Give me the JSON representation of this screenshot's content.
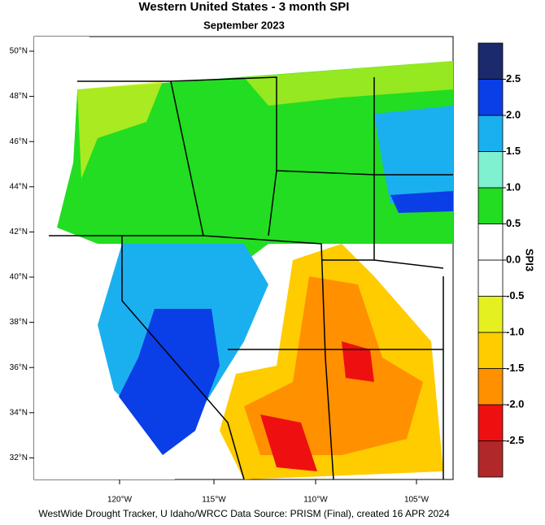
{
  "title": "Western United States - 3 month SPI",
  "subtitle": "September 2023",
  "map": {
    "lat_labels": [
      "50°N",
      "48°N",
      "46°N",
      "44°N",
      "42°N",
      "40°N",
      "38°N",
      "36°N",
      "34°N",
      "32°N"
    ],
    "lon_labels": [
      "120°W",
      "115°W",
      "110°W",
      "105°W"
    ]
  },
  "colorbar": {
    "title": "SPI3",
    "lim": [
      -3,
      3
    ],
    "colors": [
      "#b02828",
      "#ee1010",
      "#ff9000",
      "#ffcc00",
      "#e4f020",
      "#ffffff",
      "#ffffff",
      "#22dd22",
      "#7ff0d0",
      "#1ab0f0",
      "#0a3ee6",
      "#1a2a6c"
    ],
    "ticks": [
      2.5,
      {
        "value": 2,
        "label": "2.0"
      },
      1.5,
      {
        "value": 1,
        "label": "1.0"
      },
      0.5,
      {
        "value": 0,
        "label": "0.0"
      },
      -0.5,
      {
        "value": -1,
        "label": "-1.0"
      },
      -1.5,
      {
        "value": -2,
        "label": "-2.0"
      },
      -2.5
    ]
  },
  "footer": "WestWide Drought Tracker, U Idaho/WRCC Data Source: PRISM (Final), created 16 APR 2024"
}
